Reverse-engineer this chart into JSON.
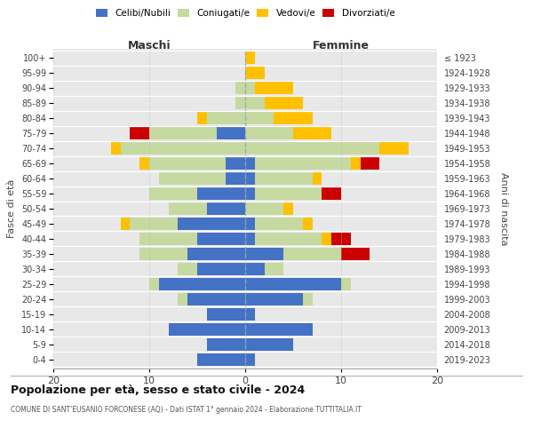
{
  "age_groups": [
    "0-4",
    "5-9",
    "10-14",
    "15-19",
    "20-24",
    "25-29",
    "30-34",
    "35-39",
    "40-44",
    "45-49",
    "50-54",
    "55-59",
    "60-64",
    "65-69",
    "70-74",
    "75-79",
    "80-84",
    "85-89",
    "90-94",
    "95-99",
    "100+"
  ],
  "birth_years": [
    "2019-2023",
    "2014-2018",
    "2009-2013",
    "2004-2008",
    "1999-2003",
    "1994-1998",
    "1989-1993",
    "1984-1988",
    "1979-1983",
    "1974-1978",
    "1969-1973",
    "1964-1968",
    "1959-1963",
    "1954-1958",
    "1949-1953",
    "1944-1948",
    "1939-1943",
    "1934-1938",
    "1929-1933",
    "1924-1928",
    "≤ 1923"
  ],
  "males_celibi": [
    5,
    4,
    8,
    4,
    6,
    9,
    5,
    6,
    5,
    7,
    4,
    5,
    2,
    2,
    0,
    3,
    0,
    0,
    0,
    0,
    0
  ],
  "males_coniugati": [
    0,
    0,
    0,
    0,
    1,
    1,
    2,
    5,
    6,
    5,
    4,
    5,
    7,
    8,
    13,
    7,
    4,
    1,
    1,
    0,
    0
  ],
  "males_vedovi": [
    0,
    0,
    0,
    0,
    0,
    0,
    0,
    0,
    0,
    1,
    0,
    0,
    0,
    1,
    1,
    0,
    1,
    0,
    0,
    0,
    0
  ],
  "males_divorziati": [
    0,
    0,
    0,
    0,
    0,
    0,
    0,
    0,
    0,
    0,
    0,
    0,
    0,
    0,
    0,
    2,
    0,
    0,
    0,
    0,
    0
  ],
  "females_nubili": [
    1,
    5,
    7,
    1,
    6,
    10,
    2,
    4,
    1,
    1,
    0,
    1,
    1,
    1,
    0,
    0,
    0,
    0,
    0,
    0,
    0
  ],
  "females_coniugate": [
    0,
    0,
    0,
    0,
    1,
    1,
    2,
    6,
    7,
    5,
    4,
    7,
    6,
    10,
    14,
    5,
    3,
    2,
    1,
    0,
    0
  ],
  "females_vedove": [
    0,
    0,
    0,
    0,
    0,
    0,
    0,
    0,
    1,
    1,
    1,
    0,
    1,
    1,
    3,
    4,
    4,
    4,
    4,
    2,
    1
  ],
  "females_divorziate": [
    0,
    0,
    0,
    0,
    0,
    0,
    0,
    3,
    2,
    0,
    0,
    2,
    0,
    2,
    0,
    0,
    0,
    0,
    0,
    0,
    0
  ],
  "color_celibi": "#4472c4",
  "color_coniugati": "#c5d9a0",
  "color_vedovi": "#ffc000",
  "color_divorziati": "#cc0000",
  "bg_color": "#efefef",
  "plot_bg": "#e8e8e8",
  "title": "Popolazione per età, sesso e stato civile - 2024",
  "subtitle": "COMUNE DI SANT'EUSANIO FORCONESE (AQ) - Dati ISTAT 1° gennaio 2024 - Elaborazione TUTTITALIA.IT",
  "label_maschi": "Maschi",
  "label_femmine": "Femmine",
  "ylabel_left": "Fasce di età",
  "ylabel_right": "Anni di nascita",
  "xlim": 20,
  "xticks": [
    -20,
    -10,
    0,
    10,
    20
  ],
  "xtick_labels": [
    "20",
    "10",
    "0",
    "10",
    "20"
  ],
  "legend_labels": [
    "Celibi/Nubili",
    "Coniugati/e",
    "Vedovi/e",
    "Divorziati/e"
  ]
}
